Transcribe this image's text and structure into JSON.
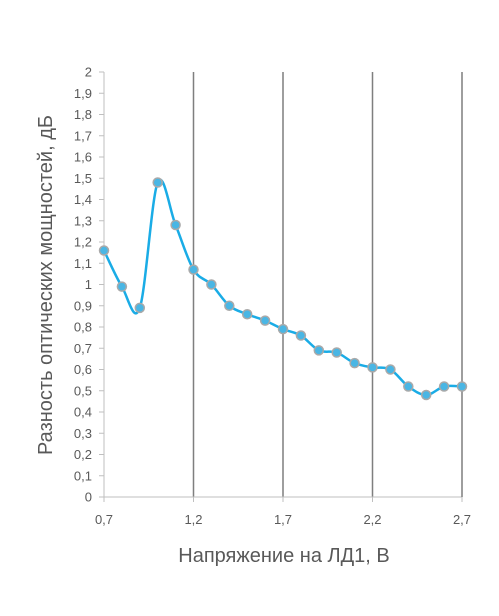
{
  "chart_data": {
    "type": "line",
    "title": "",
    "xlabel": "Напряжение на ЛД1, В",
    "ylabel": "Разность оптических мощностей, дБ",
    "xlim": [
      0.7,
      2.7
    ],
    "ylim": [
      0,
      2
    ],
    "xticks": [
      0.7,
      1.2,
      1.7,
      2.2,
      2.7
    ],
    "xtick_labels": [
      "0,7",
      "1,2",
      "1,7",
      "2,2",
      "2,7"
    ],
    "yticks": [
      0,
      0.1,
      0.2,
      0.3,
      0.4,
      0.5,
      0.6,
      0.7,
      0.8,
      0.9,
      1,
      1.1,
      1.2,
      1.3,
      1.4,
      1.5,
      1.6,
      1.7,
      1.8,
      1.9,
      2
    ],
    "ytick_labels": [
      "0",
      "0,1",
      "0,2",
      "0,3",
      "0,4",
      "0,5",
      "0,6",
      "0,7",
      "0,8",
      "0,9",
      "1",
      "1,1",
      "1,2",
      "1,3",
      "1,4",
      "1,5",
      "1,6",
      "1,7",
      "1,8",
      "1,9",
      "2"
    ],
    "vertical_gridlines": true,
    "horizontal_gridlines": false,
    "smooth": true,
    "series": [
      {
        "x": [
          0.7,
          0.8,
          0.9,
          1.0,
          1.1,
          1.2,
          1.3,
          1.4,
          1.5,
          1.6,
          1.7,
          1.8,
          1.9,
          2.0,
          2.1,
          2.2,
          2.3,
          2.4,
          2.5,
          2.6,
          2.7
        ],
        "y": [
          1.16,
          0.99,
          0.89,
          1.48,
          1.28,
          1.07,
          1.0,
          0.9,
          0.86,
          0.83,
          0.79,
          0.76,
          0.69,
          0.68,
          0.63,
          0.61,
          0.6,
          0.52,
          0.48,
          0.52,
          0.52
        ]
      }
    ]
  },
  "colors": {
    "line": "#1aace6",
    "marker_fill": "#4ab6e4",
    "marker_edge": "#a9a9a9",
    "gridline": "#7f7f7f",
    "axis": "#bfbfbf",
    "text": "#595959"
  }
}
